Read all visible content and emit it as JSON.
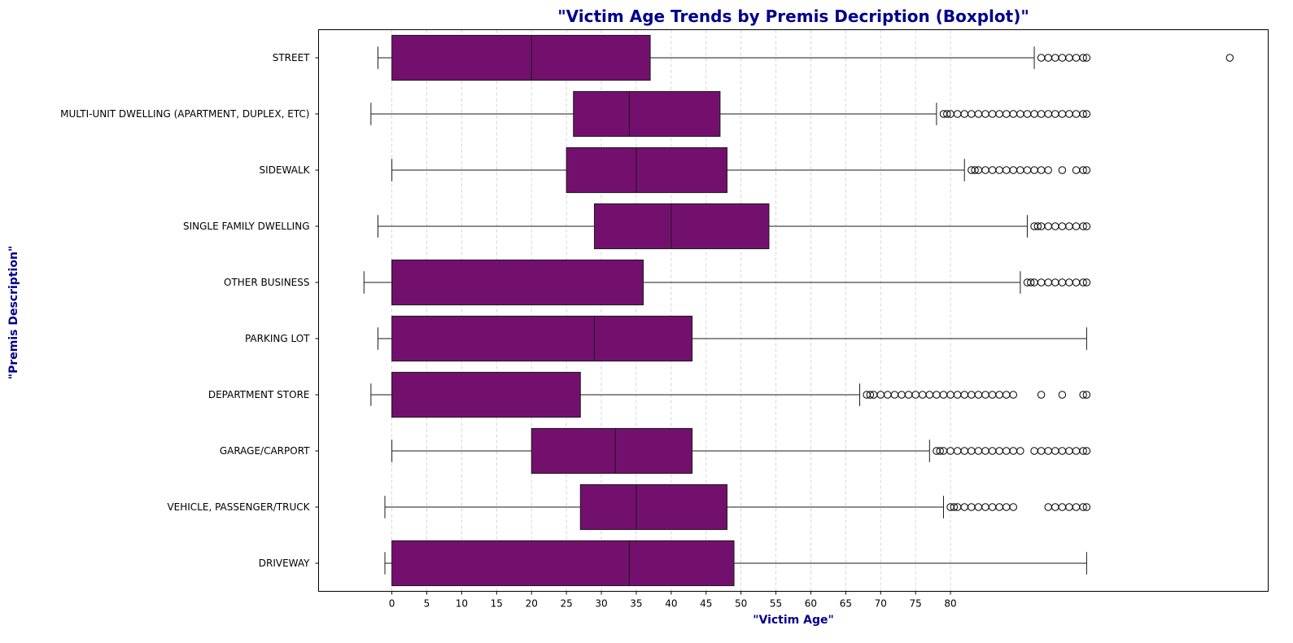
{
  "chart_data": {
    "type": "boxplot",
    "orientation": "horizontal",
    "title": "\"Victim Age Trends by Premis Decription (Boxplot)\"",
    "xlabel": "\"Victim Age\"",
    "ylabel": "\"Premis Description\"",
    "xlim": [
      -10.5,
      125.5
    ],
    "xticks": [
      0,
      5,
      10,
      15,
      20,
      25,
      30,
      35,
      40,
      45,
      50,
      55,
      60,
      65,
      70,
      75,
      80
    ],
    "grid": "x-dashed",
    "colors": {
      "box_fill": "#73106e",
      "line": "#1a1a1a",
      "title": "#00008b",
      "axis_label": "#00008b",
      "grid": "#cccccc"
    },
    "categories": [
      "STREET",
      "MULTI-UNIT DWELLING (APARTMENT, DUPLEX, ETC)",
      "SIDEWALK",
      "SINGLE FAMILY DWELLING",
      "OTHER BUSINESS",
      "PARKING LOT",
      "DEPARTMENT STORE",
      "GARAGE/CARPORT",
      "VEHICLE, PASSENGER/TRUCK",
      "DRIVEWAY"
    ],
    "boxes": [
      {
        "whisker_low": -2,
        "q1": 0,
        "median": 20,
        "q3": 37,
        "whisker_high": 92,
        "outliers": [
          93,
          94,
          95,
          96,
          97,
          98,
          99,
          99.5,
          120
        ]
      },
      {
        "whisker_low": -3,
        "q1": 26,
        "median": 34,
        "q3": 47,
        "whisker_high": 78,
        "outliers": [
          79,
          79.5,
          80,
          81,
          82,
          83,
          84,
          85,
          86,
          87,
          88,
          89,
          90,
          91,
          92,
          93,
          94,
          95,
          96,
          97,
          98,
          99,
          99.5
        ]
      },
      {
        "whisker_low": 0,
        "q1": 25,
        "median": 35,
        "q3": 48,
        "whisker_high": 82,
        "outliers": [
          83,
          83.5,
          84,
          85,
          86,
          87,
          88,
          89,
          90,
          91,
          92,
          93,
          94,
          96,
          98,
          99,
          99.5
        ]
      },
      {
        "whisker_low": -2,
        "q1": 29,
        "median": 40,
        "q3": 54,
        "whisker_high": 91,
        "outliers": [
          92,
          92.5,
          93,
          94,
          95,
          96,
          97,
          98,
          99,
          99.5
        ]
      },
      {
        "whisker_low": -4,
        "q1": 0,
        "median": 0,
        "q3": 36,
        "whisker_high": 90,
        "outliers": [
          91,
          91.5,
          92,
          93,
          94,
          95,
          96,
          97,
          98,
          99,
          99.5
        ]
      },
      {
        "whisker_low": -2,
        "q1": 0,
        "median": 29,
        "q3": 43,
        "whisker_high": 99.5,
        "outliers": []
      },
      {
        "whisker_low": -3,
        "q1": 0,
        "median": 0,
        "q3": 27,
        "whisker_high": 67,
        "outliers": [
          68,
          68.5,
          69,
          70,
          71,
          72,
          73,
          74,
          75,
          76,
          77,
          78,
          79,
          80,
          81,
          82,
          83,
          84,
          85,
          86,
          87,
          88,
          89,
          93,
          96,
          99,
          99.5
        ]
      },
      {
        "whisker_low": 0,
        "q1": 20,
        "median": 32,
        "q3": 43,
        "whisker_high": 77,
        "outliers": [
          78,
          78.5,
          79,
          80,
          81,
          82,
          83,
          84,
          85,
          86,
          87,
          88,
          89,
          90,
          92,
          93,
          94,
          95,
          96,
          97,
          98,
          99,
          99.5
        ]
      },
      {
        "whisker_low": -1,
        "q1": 27,
        "median": 35,
        "q3": 48,
        "whisker_high": 79,
        "outliers": [
          80,
          80.5,
          81,
          82,
          83,
          84,
          85,
          86,
          87,
          88,
          89,
          94,
          95,
          96,
          97,
          98,
          99,
          99.5
        ]
      },
      {
        "whisker_low": -1,
        "q1": 0,
        "median": 34,
        "q3": 49,
        "whisker_high": 99.5,
        "outliers": []
      }
    ]
  }
}
